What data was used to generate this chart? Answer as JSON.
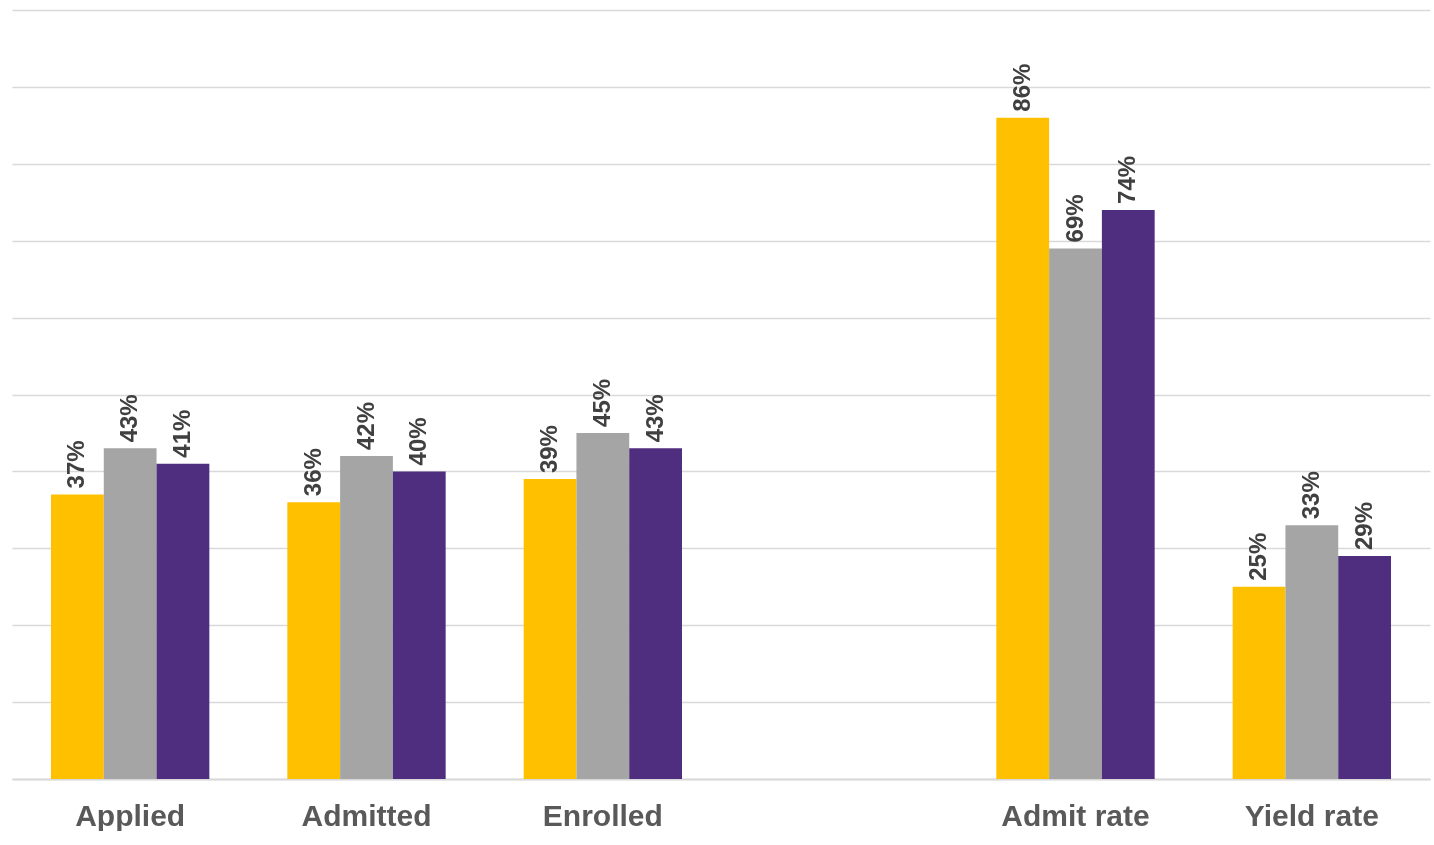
{
  "chart_data": {
    "type": "bar",
    "categories": [
      "Applied",
      "Admitted",
      "Enrolled",
      null,
      "Admit rate",
      "Yield rate"
    ],
    "series": [
      {
        "color": "#ffc000",
        "values": [
          37,
          36,
          39,
          null,
          86,
          25
        ],
        "value_labels": [
          "37%",
          "36%",
          "39%",
          null,
          "86%",
          "25%"
        ]
      },
      {
        "color": "#a5a5a5",
        "values": [
          43,
          42,
          45,
          null,
          69,
          33
        ],
        "value_labels": [
          "43%",
          "42%",
          "45%",
          null,
          "69%",
          "33%"
        ]
      },
      {
        "color": "#4f2d7f",
        "values": [
          41,
          40,
          43,
          null,
          74,
          29
        ],
        "value_labels": [
          "41%",
          "40%",
          "43%",
          null,
          "74%",
          "29%"
        ]
      }
    ],
    "ylim": [
      0,
      100
    ],
    "yticks": [
      {
        "value": 0,
        "label": null
      },
      {
        "value": 10,
        "label": null
      },
      {
        "value": 20,
        "label": null
      },
      {
        "value": 30,
        "label": null
      },
      {
        "value": 40,
        "label": null
      },
      {
        "value": 50,
        "label": null
      },
      {
        "value": 60,
        "label": null
      },
      {
        "value": 70,
        "label": null
      },
      {
        "value": 80,
        "label": null
      },
      {
        "value": 90,
        "label": null
      },
      {
        "value": 100,
        "label": null
      }
    ],
    "grid": "y",
    "tick_labels": "x"
  }
}
